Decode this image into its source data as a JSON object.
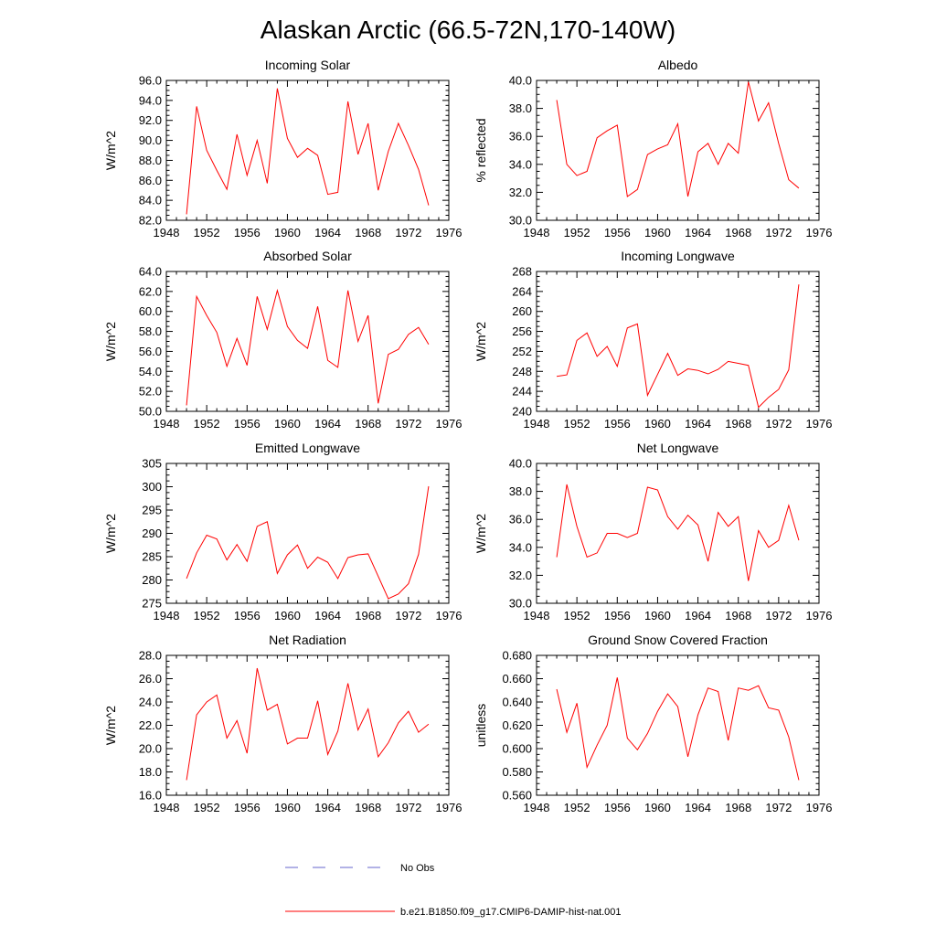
{
  "figure": {
    "title": "Alaskan Arctic (66.5-72N,170-140W)",
    "series_color": "#ff0000",
    "obs_color": "#6666cc"
  },
  "legend": {
    "items": [
      {
        "label": "No Obs",
        "style": "dashed",
        "color": "#6666cc"
      },
      {
        "label": "b.e21.B1850.f09_g17.CMIP6-DAMIP-hist-nat.001",
        "style": "solid",
        "color": "#ff0000"
      }
    ]
  },
  "chart_data": [
    {
      "type": "line",
      "title": "Incoming Solar",
      "ylabel": "W/m^2",
      "xlim": [
        1948,
        1976
      ],
      "xticks": [
        "1948",
        "1952",
        "1956",
        "1960",
        "1964",
        "1968",
        "1972",
        "1976"
      ],
      "ylim": [
        82,
        96
      ],
      "yticks": [
        "82.0",
        "84.0",
        "86.0",
        "88.0",
        "90.0",
        "92.0",
        "94.0",
        "96.0"
      ],
      "x": [
        1950,
        1951,
        1952,
        1953,
        1954,
        1955,
        1956,
        1957,
        1958,
        1959,
        1960,
        1961,
        1962,
        1963,
        1964,
        1965,
        1966,
        1967,
        1968,
        1969,
        1970,
        1971,
        1972,
        1973,
        1974
      ],
      "series": [
        {
          "values": [
            82.6,
            93.4,
            89.0,
            87.0,
            85.1,
            90.6,
            86.5,
            90.0,
            85.7,
            95.2,
            90.2,
            88.3,
            89.2,
            88.5,
            84.6,
            84.8,
            93.9,
            88.6,
            91.7,
            85.0,
            88.9,
            91.7,
            89.5,
            87.1,
            83.5
          ]
        }
      ]
    },
    {
      "type": "line",
      "title": "Albedo",
      "ylabel": "% reflected",
      "xlim": [
        1948,
        1976
      ],
      "xticks": [
        "1948",
        "1952",
        "1956",
        "1960",
        "1964",
        "1968",
        "1972",
        "1976"
      ],
      "ylim": [
        30,
        40
      ],
      "yticks": [
        "30.0",
        "32.0",
        "34.0",
        "36.0",
        "38.0",
        "40.0"
      ],
      "x": [
        1950,
        1951,
        1952,
        1953,
        1954,
        1955,
        1956,
        1957,
        1958,
        1959,
        1960,
        1961,
        1962,
        1963,
        1964,
        1965,
        1966,
        1967,
        1968,
        1969,
        1970,
        1971,
        1972,
        1973,
        1974
      ],
      "series": [
        {
          "values": [
            38.6,
            34.0,
            33.2,
            33.5,
            35.9,
            36.4,
            36.8,
            31.7,
            32.2,
            34.7,
            35.1,
            35.4,
            36.9,
            31.7,
            34.9,
            35.5,
            34.0,
            35.5,
            34.8,
            39.9,
            37.1,
            38.4,
            35.5,
            32.9,
            32.3
          ]
        }
      ]
    },
    {
      "type": "line",
      "title": "Absorbed Solar",
      "ylabel": "W/m^2",
      "xlim": [
        1948,
        1976
      ],
      "xticks": [
        "1948",
        "1952",
        "1956",
        "1960",
        "1964",
        "1968",
        "1972",
        "1976"
      ],
      "ylim": [
        50,
        64
      ],
      "yticks": [
        "50.0",
        "52.0",
        "54.0",
        "56.0",
        "58.0",
        "60.0",
        "62.0",
        "64.0"
      ],
      "x": [
        1950,
        1951,
        1952,
        1953,
        1954,
        1955,
        1956,
        1957,
        1958,
        1959,
        1960,
        1961,
        1962,
        1963,
        1964,
        1965,
        1966,
        1967,
        1968,
        1969,
        1970,
        1971,
        1972,
        1973,
        1974
      ],
      "series": [
        {
          "values": [
            50.6,
            61.5,
            59.6,
            57.9,
            54.5,
            57.3,
            54.6,
            61.5,
            58.2,
            62.1,
            58.5,
            57.1,
            56.3,
            60.5,
            55.1,
            54.4,
            62.1,
            57.0,
            59.6,
            50.8,
            55.7,
            56.2,
            57.7,
            58.4,
            56.7
          ]
        }
      ]
    },
    {
      "type": "line",
      "title": "Incoming Longwave",
      "ylabel": "W/m^2",
      "xlim": [
        1948,
        1976
      ],
      "xticks": [
        "1948",
        "1952",
        "1956",
        "1960",
        "1964",
        "1968",
        "1972",
        "1976"
      ],
      "ylim": [
        240,
        268
      ],
      "yticks": [
        "240",
        "244",
        "248",
        "252",
        "256",
        "260",
        "264",
        "268"
      ],
      "x": [
        1950,
        1951,
        1952,
        1953,
        1954,
        1955,
        1956,
        1957,
        1958,
        1959,
        1960,
        1961,
        1962,
        1963,
        1964,
        1965,
        1966,
        1967,
        1968,
        1969,
        1970,
        1971,
        1972,
        1973,
        1974
      ],
      "series": [
        {
          "values": [
            247.0,
            247.3,
            254.2,
            255.7,
            251.0,
            253.0,
            249.0,
            256.7,
            257.5,
            243.2,
            247.4,
            251.6,
            247.2,
            248.5,
            248.2,
            247.5,
            248.4,
            250.0,
            249.6,
            249.2,
            240.8,
            242.8,
            244.4,
            248.3,
            265.4
          ]
        }
      ]
    },
    {
      "type": "line",
      "title": "Emitted Longwave",
      "ylabel": "W/m^2",
      "xlim": [
        1948,
        1976
      ],
      "xticks": [
        "1948",
        "1952",
        "1956",
        "1960",
        "1964",
        "1968",
        "1972",
        "1976"
      ],
      "ylim": [
        275,
        305
      ],
      "yticks": [
        "275",
        "280",
        "285",
        "290",
        "295",
        "300",
        "305"
      ],
      "x": [
        1950,
        1951,
        1952,
        1953,
        1954,
        1955,
        1956,
        1957,
        1958,
        1959,
        1960,
        1961,
        1962,
        1963,
        1964,
        1965,
        1966,
        1967,
        1968,
        1969,
        1970,
        1971,
        1972,
        1973,
        1974
      ],
      "series": [
        {
          "values": [
            280.3,
            285.8,
            289.6,
            288.8,
            284.3,
            287.6,
            284.0,
            291.5,
            292.5,
            281.4,
            285.4,
            287.5,
            282.5,
            284.9,
            283.8,
            280.3,
            284.8,
            285.4,
            285.6,
            280.8,
            276.0,
            277.0,
            279.2,
            285.5,
            300.1
          ]
        }
      ]
    },
    {
      "type": "line",
      "title": "Net Longwave",
      "ylabel": "W/m^2",
      "xlim": [
        1948,
        1976
      ],
      "xticks": [
        "1948",
        "1952",
        "1956",
        "1960",
        "1964",
        "1968",
        "1972",
        "1976"
      ],
      "ylim": [
        30,
        40
      ],
      "yticks": [
        "30.0",
        "32.0",
        "34.0",
        "36.0",
        "38.0",
        "40.0"
      ],
      "x": [
        1950,
        1951,
        1952,
        1953,
        1954,
        1955,
        1956,
        1957,
        1958,
        1959,
        1960,
        1961,
        1962,
        1963,
        1964,
        1965,
        1966,
        1967,
        1968,
        1969,
        1970,
        1971,
        1972,
        1973,
        1974
      ],
      "series": [
        {
          "values": [
            33.3,
            38.5,
            35.5,
            33.3,
            33.6,
            35.0,
            35.0,
            34.7,
            35.0,
            38.3,
            38.1,
            36.2,
            35.3,
            36.3,
            35.6,
            33.0,
            36.5,
            35.5,
            36.2,
            31.6,
            35.2,
            34.0,
            34.5,
            37.0,
            34.5
          ]
        }
      ]
    },
    {
      "type": "line",
      "title": "Net Radiation",
      "ylabel": "W/m^2",
      "xlim": [
        1948,
        1976
      ],
      "xticks": [
        "1948",
        "1952",
        "1956",
        "1960",
        "1964",
        "1968",
        "1972",
        "1976"
      ],
      "ylim": [
        16,
        28
      ],
      "yticks": [
        "16.0",
        "18.0",
        "20.0",
        "22.0",
        "24.0",
        "26.0",
        "28.0"
      ],
      "x": [
        1950,
        1951,
        1952,
        1953,
        1954,
        1955,
        1956,
        1957,
        1958,
        1959,
        1960,
        1961,
        1962,
        1963,
        1964,
        1965,
        1966,
        1967,
        1968,
        1969,
        1970,
        1971,
        1972,
        1973,
        1974
      ],
      "series": [
        {
          "values": [
            17.3,
            22.9,
            24.0,
            24.6,
            20.9,
            22.4,
            19.6,
            26.9,
            23.3,
            23.8,
            20.4,
            20.9,
            20.9,
            24.1,
            19.5,
            21.5,
            25.6,
            21.6,
            23.4,
            19.3,
            20.5,
            22.2,
            23.2,
            21.4,
            22.1
          ]
        }
      ]
    },
    {
      "type": "line",
      "title": "Ground Snow Covered Fraction",
      "ylabel": "unitless",
      "xlim": [
        1948,
        1976
      ],
      "xticks": [
        "1948",
        "1952",
        "1956",
        "1960",
        "1964",
        "1968",
        "1972",
        "1976"
      ],
      "ylim": [
        0.56,
        0.68
      ],
      "yticks": [
        "0.560",
        "0.580",
        "0.600",
        "0.620",
        "0.640",
        "0.660",
        "0.680"
      ],
      "x": [
        1950,
        1951,
        1952,
        1953,
        1954,
        1955,
        1956,
        1957,
        1958,
        1959,
        1960,
        1961,
        1962,
        1963,
        1964,
        1965,
        1966,
        1967,
        1968,
        1969,
        1970,
        1971,
        1972,
        1973,
        1974
      ],
      "series": [
        {
          "values": [
            0.651,
            0.614,
            0.639,
            0.584,
            0.603,
            0.62,
            0.661,
            0.609,
            0.599,
            0.613,
            0.632,
            0.647,
            0.636,
            0.593,
            0.629,
            0.652,
            0.649,
            0.607,
            0.652,
            0.65,
            0.654,
            0.635,
            0.633,
            0.61,
            0.573
          ]
        }
      ]
    }
  ]
}
